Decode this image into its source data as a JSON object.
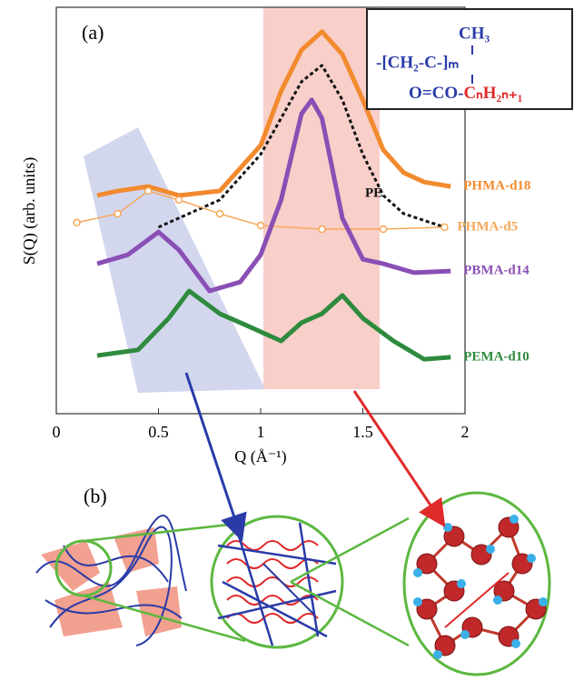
{
  "chart_data": {
    "type": "line",
    "panel_a": "(a)",
    "panel_b": "(b)",
    "y_label": "S(Q) (arb. units)",
    "x_label": "Q (Å⁻¹)",
    "xlim": [
      0,
      2
    ],
    "ylim": [
      0,
      10
    ],
    "xticks": [
      0,
      0.5,
      1,
      1.5,
      2
    ],
    "structure": {
      "line1": "CH₃",
      "line2": "-[CH₂-C-]ₘ",
      "line3a": "O=CO-",
      "line3b": "CₙH₂ₙ₊₁"
    },
    "series": [
      {
        "name": "PHMA-d18",
        "color": "#f28a2e",
        "style": "line",
        "x": [
          0.2,
          0.3,
          0.45,
          0.6,
          0.8,
          1.0,
          1.1,
          1.2,
          1.3,
          1.4,
          1.5,
          1.6,
          1.7,
          1.8,
          1.93
        ],
        "values": [
          5.37,
          5.48,
          5.59,
          5.37,
          5.48,
          6.6,
          7.94,
          8.95,
          9.4,
          8.84,
          7.72,
          6.49,
          5.93,
          5.7,
          5.59
        ]
      },
      {
        "name": "PE",
        "color": "#111111",
        "style": "dashed",
        "x": [
          0.5,
          0.8,
          1.0,
          1.1,
          1.2,
          1.3,
          1.4,
          1.5,
          1.6,
          1.7,
          1.9
        ],
        "values": [
          4.59,
          5.26,
          6.38,
          7.27,
          8.17,
          8.57,
          7.72,
          6.38,
          5.37,
          4.92,
          4.59
        ]
      },
      {
        "name": "PHMA-d5",
        "color": "#f5a85a",
        "style": "open-circles",
        "x": [
          0.1,
          0.3,
          0.45,
          0.6,
          0.8,
          1.0,
          1.3,
          1.6,
          1.9
        ],
        "values": [
          4.7,
          4.92,
          5.48,
          5.26,
          4.92,
          4.63,
          4.54,
          4.54,
          4.59
        ]
      },
      {
        "name": "PBMA-d14",
        "color": "#8a4fb5",
        "style": "line",
        "x": [
          0.2,
          0.35,
          0.5,
          0.6,
          0.75,
          0.9,
          1.0,
          1.1,
          1.2,
          1.25,
          1.3,
          1.4,
          1.5,
          1.6,
          1.75,
          1.93
        ],
        "values": [
          3.69,
          3.91,
          4.47,
          4.03,
          3.02,
          3.24,
          3.91,
          5.26,
          7.38,
          7.72,
          7.27,
          4.81,
          3.8,
          3.69,
          3.47,
          3.51
        ]
      },
      {
        "name": "PEMA-d10",
        "color": "#2e8b3e",
        "style": "line",
        "x": [
          0.2,
          0.4,
          0.55,
          0.65,
          0.8,
          0.95,
          1.1,
          1.2,
          1.3,
          1.4,
          1.5,
          1.65,
          1.8,
          1.93
        ],
        "values": [
          1.43,
          1.57,
          2.35,
          3.02,
          2.46,
          2.13,
          1.79,
          2.24,
          2.46,
          2.91,
          2.35,
          1.79,
          1.34,
          1.39
        ]
      }
    ]
  }
}
